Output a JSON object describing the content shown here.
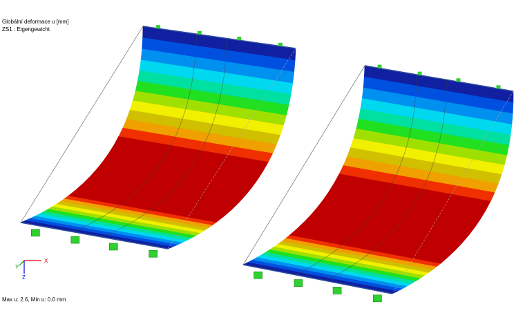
{
  "header": {
    "title": "Globální deformace u [mm]",
    "subtitle": "ZS1 : Eigengewicht"
  },
  "axes": {
    "x": "X",
    "y": "Y",
    "z": "Z"
  },
  "footer": {
    "text": "Max u: 2.6, Min u: 0.0 mm"
  }
}
